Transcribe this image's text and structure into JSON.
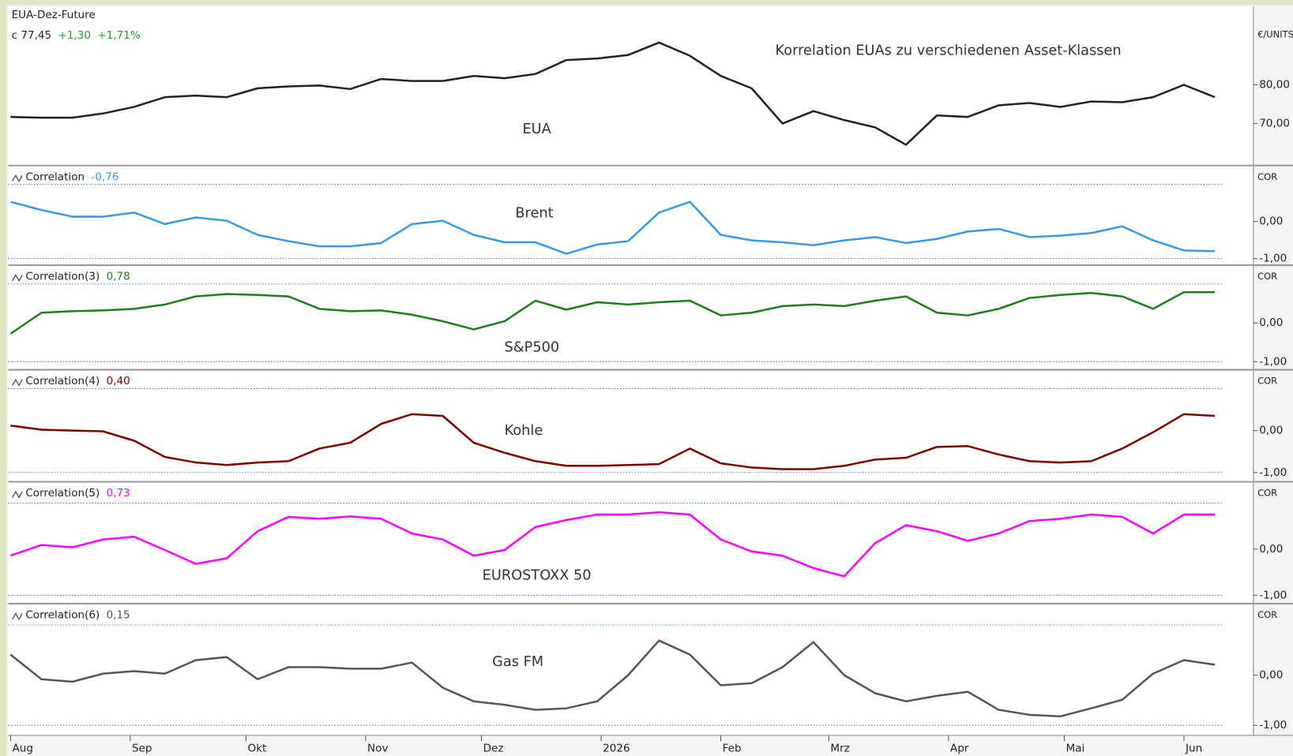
{
  "chart_data": [
    {
      "type": "line",
      "title": "EUA-Dez-Future",
      "close_label": "c 77,45",
      "change": "+1,30",
      "change_pct": "+1,71%",
      "change_color": "#22a022",
      "annotation": "Korrelation EUAs zu verschiedenen Asset-Klassen",
      "label": "EUA",
      "unit": "€/UNITS",
      "xlim": [
        -0.6,
        322
      ],
      "ylim": [
        60,
        100.2
      ],
      "yticks": [
        {
          "value": 80,
          "label": "80,00"
        },
        {
          "value": 70,
          "label": "70,00"
        }
      ],
      "x": [
        0,
        8,
        16,
        24,
        32,
        40,
        48,
        56,
        64,
        72,
        80,
        88,
        96,
        104,
        112,
        120,
        128,
        136,
        144,
        152,
        160,
        168,
        176,
        184,
        192,
        200,
        208,
        216,
        224,
        232,
        240,
        248,
        256,
        264,
        272,
        280,
        288,
        296,
        304,
        312
      ],
      "series": [
        {
          "color": "#222222",
          "values": [
            71.7,
            71.5,
            71.5,
            72.6,
            74.3,
            76.8,
            77.2,
            76.8,
            79.1,
            79.6,
            79.8,
            78.9,
            81.5,
            81,
            81,
            82.3,
            81.7,
            82.8,
            86.4,
            86.8,
            87.7,
            90.9,
            87.5,
            82.3,
            79.1,
            70,
            73.2,
            70.9,
            69,
            64.5,
            72.1,
            71.7,
            74.7,
            75.3,
            74.3,
            75.7,
            75.5,
            76.8,
            80,
            76.8
          ]
        }
      ]
    },
    {
      "type": "line",
      "indicator": "Correlation",
      "last_value": "-0,76",
      "label": "Brent",
      "unit": "COR",
      "xlim": [
        -0.6,
        322
      ],
      "ylim": [
        -1.2,
        1.42
      ],
      "hlines": [
        1,
        -1
      ],
      "yticks": [
        {
          "value": 0,
          "label": "0,00"
        },
        {
          "value": -1,
          "label": "-1,00"
        }
      ],
      "x": [
        0,
        8,
        16,
        24,
        32,
        40,
        48,
        56,
        64,
        72,
        80,
        88,
        96,
        104,
        112,
        120,
        128,
        136,
        144,
        152,
        160,
        168,
        176,
        184,
        192,
        200,
        208,
        216,
        224,
        232,
        240,
        248,
        256,
        264,
        272,
        280,
        288,
        296,
        304,
        312
      ],
      "series": [
        {
          "color": "#3399ee",
          "values": [
            0.53,
            0.31,
            0.13,
            0.13,
            0.24,
            -0.07,
            0.11,
            0.02,
            -0.36,
            -0.53,
            -0.67,
            -0.67,
            -0.58,
            -0.07,
            0.02,
            -0.36,
            -0.56,
            -0.56,
            -0.87,
            -0.62,
            -0.53,
            0.24,
            0.53,
            -0.36,
            -0.51,
            -0.56,
            -0.64,
            -0.51,
            -0.42,
            -0.58,
            -0.47,
            -0.27,
            -0.2,
            -0.42,
            -0.38,
            -0.31,
            -0.13,
            -0.51,
            -0.78,
            -0.8
          ]
        }
      ]
    },
    {
      "type": "line",
      "indicator": "Correlation(3)",
      "last_value": "0,78",
      "label": "S&P500",
      "unit": "COR",
      "xlim": [
        -0.6,
        322
      ],
      "ylim": [
        -1.23,
        1.4
      ],
      "hlines": [
        1,
        -1
      ],
      "yticks": [
        {
          "value": 0,
          "label": "0,00"
        },
        {
          "value": -1,
          "label": "-1,00"
        }
      ],
      "x": [
        0,
        8,
        16,
        24,
        32,
        40,
        48,
        56,
        64,
        72,
        80,
        88,
        96,
        104,
        112,
        120,
        128,
        136,
        144,
        152,
        160,
        168,
        176,
        184,
        192,
        200,
        208,
        216,
        224,
        232,
        240,
        248,
        256,
        264,
        272,
        280,
        288,
        296,
        304,
        312
      ],
      "series": [
        {
          "color": "#1a7f1a",
          "values": [
            -0.28,
            0.26,
            0.3,
            0.32,
            0.36,
            0.47,
            0.68,
            0.74,
            0.72,
            0.68,
            0.36,
            0.3,
            0.32,
            0.21,
            0.04,
            -0.17,
            0.04,
            0.57,
            0.34,
            0.53,
            0.47,
            0.53,
            0.57,
            0.19,
            0.26,
            0.43,
            0.47,
            0.43,
            0.57,
            0.68,
            0.26,
            0.19,
            0.36,
            0.64,
            0.72,
            0.77,
            0.68,
            0.36,
            0.79,
            0.79
          ]
        }
      ]
    },
    {
      "type": "line",
      "indicator": "Correlation(4)",
      "last_value": "0,40",
      "label": "Kohle",
      "unit": "COR",
      "xlim": [
        -0.6,
        322
      ],
      "ylim": [
        -1.22,
        1.37
      ],
      "hlines": [
        1,
        -1
      ],
      "yticks": [
        {
          "value": 0,
          "label": "0,00"
        },
        {
          "value": -1,
          "label": "-1,00"
        }
      ],
      "x": [
        0,
        8,
        16,
        24,
        32,
        40,
        48,
        56,
        64,
        72,
        80,
        88,
        96,
        104,
        112,
        120,
        128,
        136,
        144,
        152,
        160,
        168,
        176,
        184,
        192,
        200,
        208,
        216,
        224,
        232,
        240,
        248,
        256,
        264,
        272,
        280,
        288,
        296,
        304,
        312
      ],
      "series": [
        {
          "color": "#800000",
          "values": [
            0.12,
            0.02,
            0,
            -0.02,
            -0.24,
            -0.63,
            -0.76,
            -0.82,
            -0.76,
            -0.73,
            -0.43,
            -0.29,
            0.16,
            0.39,
            0.35,
            -0.29,
            -0.53,
            -0.73,
            -0.84,
            -0.84,
            -0.82,
            -0.8,
            -0.43,
            -0.78,
            -0.88,
            -0.92,
            -0.92,
            -0.84,
            -0.69,
            -0.65,
            -0.39,
            -0.37,
            -0.57,
            -0.73,
            -0.76,
            -0.73,
            -0.43,
            -0.04,
            0.39,
            0.35
          ]
        }
      ]
    },
    {
      "type": "line",
      "indicator": "Correlation(5)",
      "last_value": "0,73",
      "label": "EUROSTOXX 50",
      "unit": "COR",
      "xlim": [
        -0.6,
        322
      ],
      "ylim": [
        -1.2,
        1.39
      ],
      "hlines": [
        1,
        -1
      ],
      "yticks": [
        {
          "value": 0,
          "label": "0,00"
        },
        {
          "value": -1,
          "label": "-1,00"
        }
      ],
      "x": [
        0,
        8,
        16,
        24,
        32,
        40,
        48,
        56,
        64,
        72,
        80,
        88,
        96,
        104,
        112,
        120,
        128,
        136,
        144,
        152,
        160,
        168,
        176,
        184,
        192,
        200,
        208,
        216,
        224,
        232,
        240,
        248,
        256,
        264,
        272,
        280,
        288,
        296,
        304,
        312
      ],
      "series": [
        {
          "color": "#ff00ff",
          "values": [
            -0.14,
            0.09,
            0.04,
            0.21,
            0.27,
            -0.02,
            -0.32,
            -0.2,
            0.39,
            0.7,
            0.66,
            0.71,
            0.66,
            0.34,
            0.21,
            -0.14,
            -0.02,
            0.48,
            0.63,
            0.75,
            0.75,
            0.8,
            0.75,
            0.21,
            -0.05,
            -0.14,
            -0.41,
            -0.59,
            0.13,
            0.52,
            0.39,
            0.18,
            0.34,
            0.61,
            0.66,
            0.75,
            0.7,
            0.34,
            0.75,
            0.75
          ]
        }
      ]
    },
    {
      "type": "line",
      "indicator": "Correlation(6)",
      "last_value": "0,15",
      "label": "Gas FM",
      "unit": "COR",
      "xlim": [
        -0.6,
        322
      ],
      "ylim": [
        -1.2,
        1.36
      ],
      "hlines": [
        1,
        -1
      ],
      "yticks": [
        {
          "value": 0,
          "label": "0,00"
        },
        {
          "value": -1,
          "label": "-1,00"
        }
      ],
      "xticks": [
        {
          "value": 0,
          "label": "Aug"
        },
        {
          "value": 31,
          "label": "Sep"
        },
        {
          "value": 61,
          "label": "Okt"
        },
        {
          "value": 92,
          "label": "Nov"
        },
        {
          "value": 122,
          "label": "Dez"
        },
        {
          "value": 153,
          "label": "2026"
        },
        {
          "value": 184,
          "label": "Feb"
        },
        {
          "value": 212,
          "label": "Mrz"
        },
        {
          "value": 243,
          "label": "Apr"
        },
        {
          "value": 273,
          "label": "Mai"
        },
        {
          "value": 304,
          "label": "Jun"
        }
      ],
      "x": [
        0,
        8,
        16,
        24,
        32,
        40,
        48,
        56,
        64,
        72,
        80,
        88,
        96,
        104,
        112,
        120,
        128,
        136,
        144,
        152,
        160,
        168,
        176,
        184,
        192,
        200,
        208,
        216,
        224,
        232,
        240,
        248,
        256,
        264,
        272,
        280,
        288,
        296,
        304,
        312
      ],
      "series": [
        {
          "color": "#555555",
          "values": [
            0.41,
            -0.08,
            -0.13,
            0.03,
            0.08,
            0.03,
            0.3,
            0.36,
            -0.08,
            0.16,
            0.16,
            0.13,
            0.13,
            0.25,
            -0.25,
            -0.52,
            -0.59,
            -0.69,
            -0.66,
            -0.52,
            0,
            0.69,
            0.41,
            -0.2,
            -0.16,
            0.16,
            0.66,
            0,
            -0.36,
            -0.52,
            -0.41,
            -0.33,
            -0.69,
            -0.79,
            -0.82,
            -0.66,
            -0.49,
            0.03,
            0.3,
            0.21
          ]
        }
      ]
    }
  ]
}
